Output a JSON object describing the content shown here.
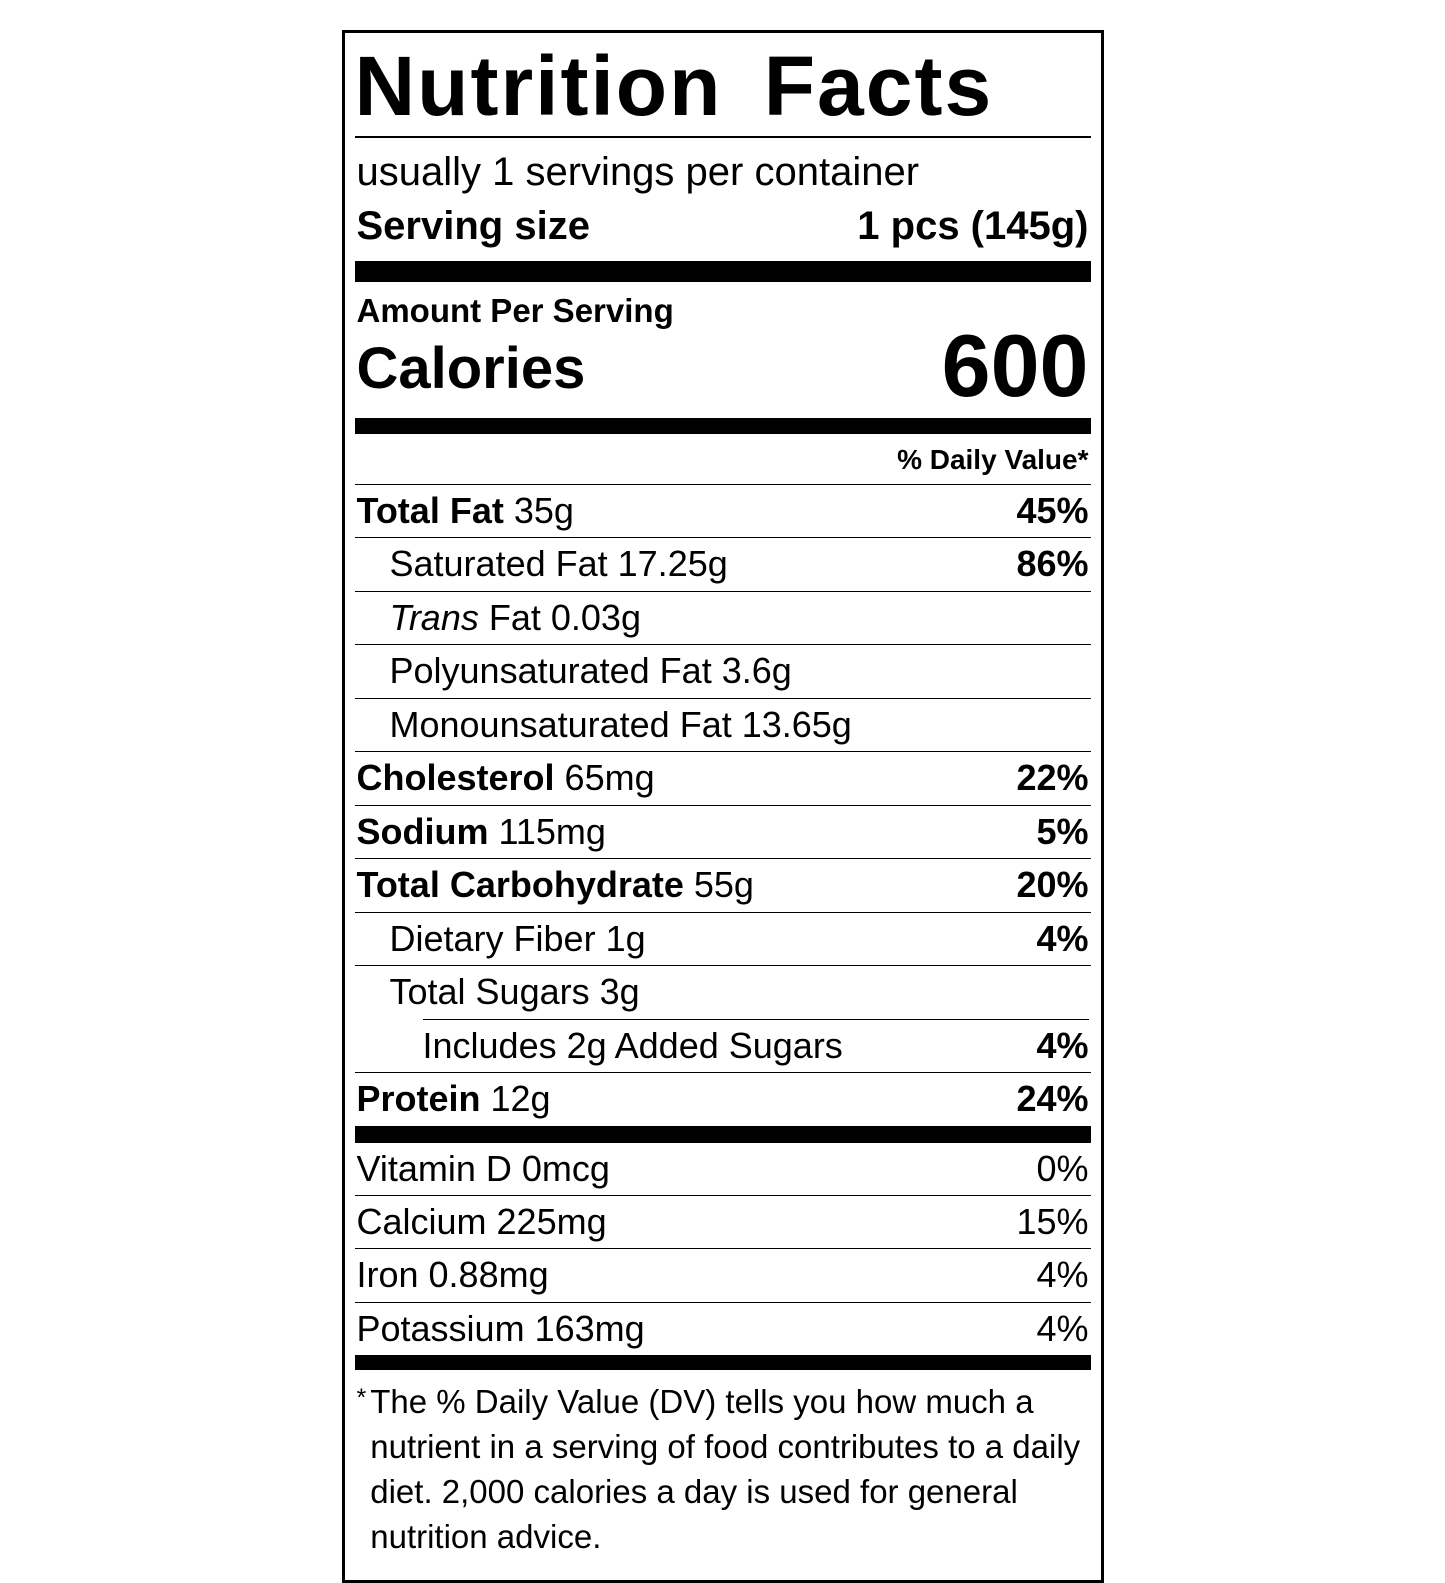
{
  "colors": {
    "text": "#000000",
    "background": "#ffffff"
  },
  "label": {
    "title": "Nutrition Facts",
    "servings_per_container": "usually 1 servings per container",
    "serving_size_label": "Serving size",
    "serving_size_value": "1 pcs (145g)",
    "amount_per_serving": "Amount Per Serving",
    "calories_label": "Calories",
    "calories_value": "600",
    "daily_value_header": "% Daily Value*",
    "nutrients": [
      {
        "name": "Total Fat",
        "style": "bold",
        "amount": "35g",
        "dv": "45%",
        "indent": 0
      },
      {
        "name": "Saturated Fat",
        "style": "regular",
        "amount": "17.25g",
        "dv": "86%",
        "indent": 1
      },
      {
        "name": "Trans",
        "style": "italic",
        "amount": "Fat 0.03g",
        "dv": "",
        "indent": 1
      },
      {
        "name": "Polyunsaturated Fat",
        "style": "regular",
        "amount": "3.6g",
        "dv": "",
        "indent": 1
      },
      {
        "name": "Monounsaturated Fat",
        "style": "regular",
        "amount": "13.65g",
        "dv": "",
        "indent": 1
      },
      {
        "name": "Cholesterol",
        "style": "bold",
        "amount": "65mg",
        "dv": "22%",
        "indent": 0
      },
      {
        "name": "Sodium",
        "style": "bold",
        "amount": "115mg",
        "dv": "5%",
        "indent": 0
      },
      {
        "name": "Total Carbohydrate",
        "style": "bold",
        "amount": "55g",
        "dv": "20%",
        "indent": 0
      },
      {
        "name": "Dietary Fiber",
        "style": "regular",
        "amount": "1g",
        "dv": "4%",
        "indent": 1
      },
      {
        "name": "Total Sugars",
        "style": "regular",
        "amount": "3g",
        "dv": "",
        "indent": 1
      },
      {
        "name": "Includes 2g Added Sugars",
        "style": "regular",
        "amount": "",
        "dv": "4%",
        "indent": 2,
        "sep": "indent"
      },
      {
        "name": "Protein",
        "style": "bold",
        "amount": "12g",
        "dv": "24%",
        "indent": 0
      }
    ],
    "micronutrients": [
      {
        "name": "Vitamin D 0mcg",
        "dv": "0%"
      },
      {
        "name": "Calcium 225mg",
        "dv": "15%"
      },
      {
        "name": "Iron 0.88mg",
        "dv": "4%"
      },
      {
        "name": "Potassium 163mg",
        "dv": "4%"
      }
    ],
    "footnote_symbol": "*",
    "footnote_text": "The % Daily Value (DV) tells you how much a nutrient in a serving of food contributes to a daily diet. 2,000 calories a day is used for general nutrition advice."
  }
}
